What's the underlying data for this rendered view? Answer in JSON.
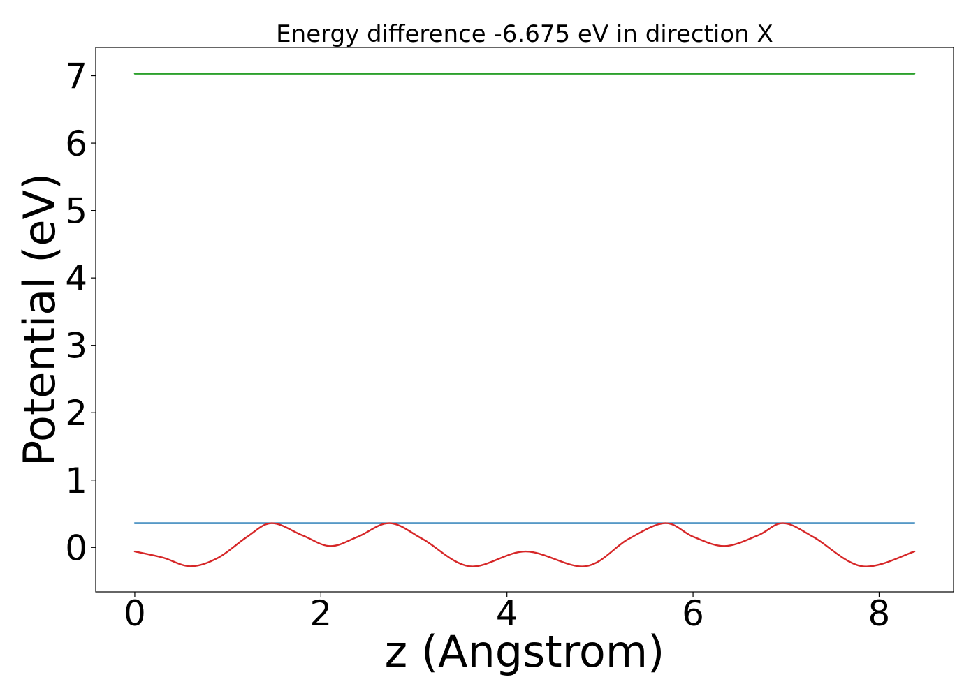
{
  "chart_data": {
    "type": "line",
    "title": "Energy difference -6.675 eV in direction X",
    "xlabel": "z (Angstrom)",
    "ylabel": "Potential (eV)",
    "xlim": [
      -0.42,
      8.8
    ],
    "ylim": [
      -0.66,
      7.42
    ],
    "xticks": [
      0,
      2,
      4,
      6,
      8
    ],
    "yticks": [
      0,
      1,
      2,
      3,
      4,
      5,
      6,
      7
    ],
    "grid": false,
    "legend": "none",
    "series": [
      {
        "color": "#2ca02c",
        "x": [
          0,
          8.38
        ],
        "y": [
          7.03,
          7.03
        ]
      },
      {
        "color": "#1f77b4",
        "x": [
          0,
          8.38
        ],
        "y": [
          0.36,
          0.36
        ]
      },
      {
        "color": "#d62728",
        "x": [
          0,
          0.3,
          0.6,
          0.9,
          1.2,
          1.47,
          1.8,
          2.1,
          2.4,
          2.74,
          3.1,
          3.6,
          4.2,
          4.84,
          5.3,
          5.7,
          6.0,
          6.34,
          6.7,
          6.97,
          7.3,
          7.82,
          8.38
        ],
        "y": [
          -0.06,
          -0.15,
          -0.28,
          -0.15,
          0.15,
          0.36,
          0.18,
          0.02,
          0.16,
          0.36,
          0.12,
          -0.28,
          -0.06,
          -0.28,
          0.12,
          0.36,
          0.16,
          0.02,
          0.18,
          0.36,
          0.15,
          -0.28,
          -0.06
        ]
      }
    ]
  }
}
